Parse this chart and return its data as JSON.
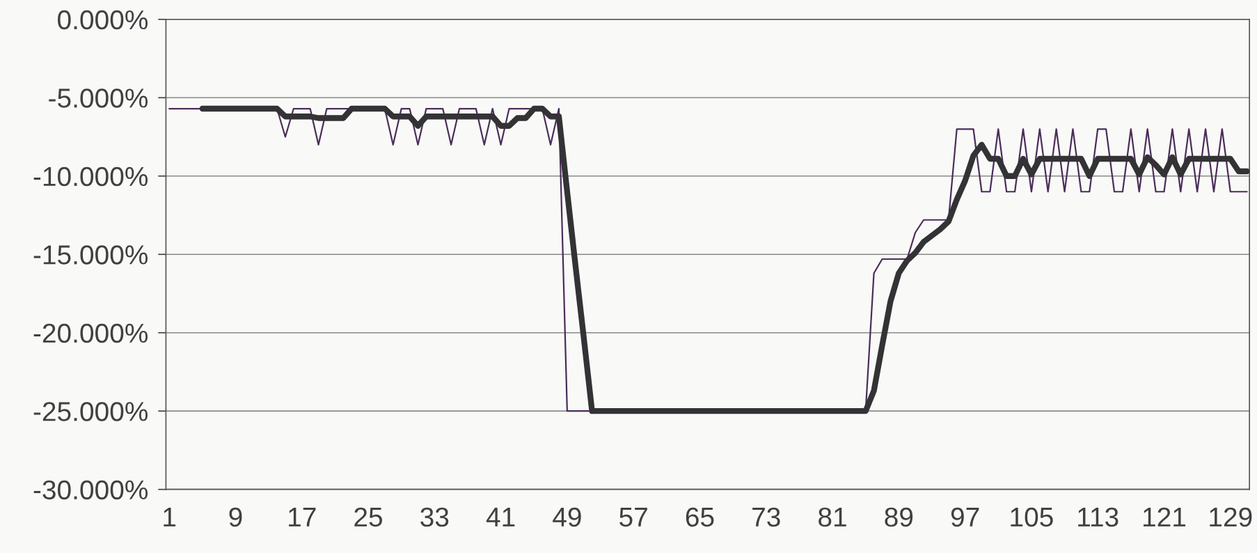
{
  "chart_data": {
    "type": "line",
    "x": [
      1,
      2,
      3,
      4,
      5,
      6,
      7,
      8,
      9,
      10,
      11,
      12,
      13,
      14,
      15,
      16,
      17,
      18,
      19,
      20,
      21,
      22,
      23,
      24,
      25,
      26,
      27,
      28,
      29,
      30,
      31,
      32,
      33,
      34,
      35,
      36,
      37,
      38,
      39,
      40,
      41,
      42,
      43,
      44,
      45,
      46,
      47,
      48,
      49,
      50,
      51,
      52,
      53,
      54,
      55,
      56,
      57,
      58,
      59,
      60,
      61,
      62,
      63,
      64,
      65,
      66,
      67,
      68,
      69,
      70,
      71,
      72,
      73,
      74,
      75,
      76,
      77,
      78,
      79,
      80,
      81,
      82,
      83,
      84,
      85,
      86,
      87,
      88,
      89,
      90,
      91,
      92,
      93,
      94,
      95,
      96,
      97,
      98,
      99,
      100,
      101,
      102,
      103,
      104,
      105,
      106,
      107,
      108,
      109,
      110,
      111,
      112,
      113,
      114,
      115,
      116,
      117,
      118,
      119,
      120,
      121,
      122,
      123,
      124,
      125,
      126,
      127,
      128,
      129,
      130,
      131
    ],
    "series": [
      {
        "color": "#4b2d5a",
        "values": [
          -5.7,
          -5.7,
          -5.7,
          -5.7,
          -5.7,
          -5.7,
          -5.7,
          -5.7,
          -5.7,
          -5.7,
          -5.7,
          -5.7,
          -5.7,
          -5.7,
          -7.5,
          -5.7,
          -5.7,
          -5.7,
          -8.0,
          -5.7,
          -5.7,
          -5.7,
          -5.7,
          -5.7,
          -5.7,
          -5.7,
          -5.7,
          -8.0,
          -5.7,
          -5.7,
          -8.0,
          -5.7,
          -5.7,
          -5.7,
          -8.0,
          -5.7,
          -5.7,
          -5.7,
          -8.0,
          -5.7,
          -8.0,
          -5.7,
          -5.7,
          -5.7,
          -5.7,
          -5.7,
          -8.0,
          -5.7,
          -25,
          -25,
          -25,
          -25,
          -25,
          -25,
          -25,
          -25,
          -25,
          -25,
          -25,
          -25,
          -25,
          -25,
          -25,
          -25,
          -25,
          -25,
          -25,
          -25,
          -25,
          -25,
          -25,
          -25,
          -25,
          -25,
          -25,
          -25,
          -25,
          -25,
          -25,
          -25,
          -25,
          -25,
          -25,
          -25,
          -25,
          -16.2,
          -15.3,
          -15.3,
          -15.3,
          -15.3,
          -13.6,
          -12.8,
          -12.8,
          -12.8,
          -12.8,
          -7.0,
          -7.0,
          -7.0,
          -11.0,
          -11.0,
          -7.0,
          -11.0,
          -11.0,
          -7.0,
          -11.0,
          -7.0,
          -11.0,
          -7.0,
          -11.0,
          -7.0,
          -11.0,
          -11.0,
          -7.0,
          -7.0,
          -11.0,
          -11.0,
          -7.0,
          -11.0,
          -7.0,
          -11.0,
          -11.0,
          -7.0,
          -11.0,
          -7.0,
          -11.0,
          -7.0,
          -11.0,
          -7.0,
          -11.0,
          -11.0,
          -11.0
        ]
      },
      {
        "color": "#333336",
        "values": [
          null,
          null,
          null,
          null,
          -5.7,
          -5.7,
          -5.7,
          -5.7,
          -5.7,
          -5.7,
          -5.7,
          -5.7,
          -5.7,
          -5.7,
          -6.2,
          -6.2,
          -6.2,
          -6.2,
          -6.3,
          -6.3,
          -6.3,
          -6.3,
          -5.7,
          -5.7,
          -5.7,
          -5.7,
          -5.7,
          -6.2,
          -6.2,
          -6.2,
          -6.8,
          -6.2,
          -6.2,
          -6.2,
          -6.2,
          -6.2,
          -6.2,
          -6.2,
          -6.2,
          -6.2,
          -6.8,
          -6.8,
          -6.3,
          -6.3,
          -5.7,
          -5.7,
          -6.2,
          -6.2,
          -11.0,
          -15.7,
          -20.3,
          -25,
          -25,
          -25,
          -25,
          -25,
          -25,
          -25,
          -25,
          -25,
          -25,
          -25,
          -25,
          -25,
          -25,
          -25,
          -25,
          -25,
          -25,
          -25,
          -25,
          -25,
          -25,
          -25,
          -25,
          -25,
          -25,
          -25,
          -25,
          -25,
          -25,
          -25,
          -25,
          -25,
          -25,
          -23.7,
          -20.8,
          -18.0,
          -16.2,
          -15.4,
          -14.9,
          -14.2,
          -13.8,
          -13.4,
          -12.9,
          -11.5,
          -10.3,
          -8.7,
          -8.0,
          -8.9,
          -8.9,
          -10.0,
          -10.0,
          -8.9,
          -9.9,
          -8.9,
          -8.9,
          -8.9,
          -8.9,
          -8.9,
          -8.9,
          -10.0,
          -8.9,
          -8.9,
          -8.9,
          -8.9,
          -8.9,
          -9.9,
          -8.8,
          -9.3,
          -9.9,
          -8.8,
          -9.9,
          -8.9,
          -8.9,
          -8.9,
          -8.9,
          -8.9,
          -8.9,
          -9.7,
          -9.7
        ]
      }
    ],
    "xlim": [
      0.6,
      131.3
    ],
    "xticks": [
      1,
      9,
      17,
      25,
      33,
      41,
      49,
      57,
      65,
      73,
      81,
      89,
      97,
      105,
      113,
      121,
      129
    ],
    "ylim": [
      -30,
      0
    ],
    "yticks": [
      {
        "value": 0,
        "label": "0.000%"
      },
      {
        "value": -5,
        "label": "-5.000%"
      },
      {
        "value": -10,
        "label": "-10.000%"
      },
      {
        "value": -15,
        "label": "-15.000%"
      },
      {
        "value": -20,
        "label": "-20.000%"
      },
      {
        "value": -25,
        "label": "-25.000%"
      },
      {
        "value": -30,
        "label": "-30.000%"
      }
    ],
    "grid": "y",
    "marker": "none",
    "line_style": "solid"
  }
}
